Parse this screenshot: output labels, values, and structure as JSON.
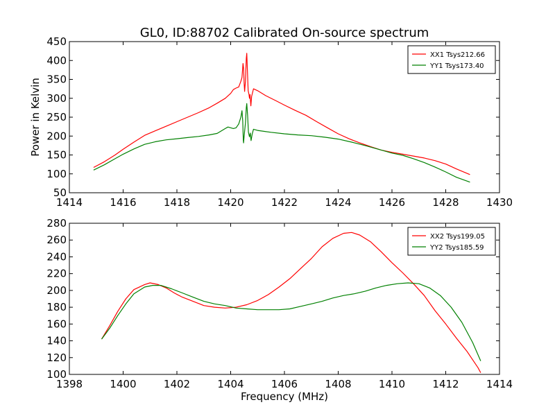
{
  "figure": {
    "title": "GL0, ID:88702 Calibrated On-source spectrum"
  },
  "chart_data": [
    {
      "type": "line",
      "title": "GL0, ID:88702 Calibrated On-source spectrum",
      "xlabel": "",
      "ylabel": "Power in Kelvin",
      "xlim": [
        1414,
        1430
      ],
      "ylim": [
        50,
        450
      ],
      "xticks": [
        1414,
        1416,
        1418,
        1420,
        1422,
        1424,
        1426,
        1428,
        1430
      ],
      "yticks": [
        50,
        100,
        150,
        200,
        250,
        300,
        350,
        400,
        450
      ],
      "grid": false,
      "legend_position": "top-right",
      "series": [
        {
          "name": "XX1 Tsys212.66",
          "color": "#ff0000",
          "points": [
            [
              1414.9,
              117
            ],
            [
              1415.3,
              132
            ],
            [
              1415.7,
              150
            ],
            [
              1416.0,
              165
            ],
            [
              1416.4,
              184
            ],
            [
              1416.8,
              202
            ],
            [
              1417.2,
              214
            ],
            [
              1417.6,
              226
            ],
            [
              1418.0,
              238
            ],
            [
              1418.4,
              250
            ],
            [
              1418.8,
              262
            ],
            [
              1419.2,
              275
            ],
            [
              1419.5,
              287
            ],
            [
              1419.8,
              300
            ],
            [
              1420.0,
              313
            ],
            [
              1420.1,
              323
            ],
            [
              1420.2,
              327
            ],
            [
              1420.3,
              330
            ],
            [
              1420.38,
              345
            ],
            [
              1420.42,
              355
            ],
            [
              1420.46,
              392
            ],
            [
              1420.48,
              380
            ],
            [
              1420.5,
              340
            ],
            [
              1420.52,
              318
            ],
            [
              1420.55,
              345
            ],
            [
              1420.58,
              405
            ],
            [
              1420.6,
              419
            ],
            [
              1420.62,
              380
            ],
            [
              1420.65,
              320
            ],
            [
              1420.68,
              310
            ],
            [
              1420.7,
              300
            ],
            [
              1420.72,
              310
            ],
            [
              1420.75,
              280
            ],
            [
              1420.78,
              305
            ],
            [
              1420.85,
              325
            ],
            [
              1421.0,
              320
            ],
            [
              1421.3,
              307
            ],
            [
              1421.7,
              293
            ],
            [
              1422.0,
              282
            ],
            [
              1422.4,
              268
            ],
            [
              1422.8,
              255
            ],
            [
              1423.2,
              238
            ],
            [
              1423.6,
              222
            ],
            [
              1424.0,
              206
            ],
            [
              1424.4,
              193
            ],
            [
              1424.8,
              182
            ],
            [
              1425.2,
              172
            ],
            [
              1425.6,
              163
            ],
            [
              1426.0,
              157
            ],
            [
              1426.4,
              152
            ],
            [
              1426.8,
              147
            ],
            [
              1427.2,
              142
            ],
            [
              1427.6,
              135
            ],
            [
              1428.0,
              126
            ],
            [
              1428.4,
              113
            ],
            [
              1428.9,
              98
            ]
          ]
        },
        {
          "name": "YY1 Tsys173.40",
          "color": "#008000",
          "points": [
            [
              1414.9,
              110
            ],
            [
              1415.3,
              124
            ],
            [
              1415.7,
              140
            ],
            [
              1416.0,
              152
            ],
            [
              1416.4,
              166
            ],
            [
              1416.8,
              178
            ],
            [
              1417.2,
              185
            ],
            [
              1417.6,
              190
            ],
            [
              1418.0,
              193
            ],
            [
              1418.4,
              196
            ],
            [
              1418.8,
              199
            ],
            [
              1419.2,
              203
            ],
            [
              1419.5,
              207
            ],
            [
              1419.8,
              220
            ],
            [
              1419.9,
              224
            ],
            [
              1420.0,
              222
            ],
            [
              1420.1,
              220
            ],
            [
              1420.2,
              222
            ],
            [
              1420.3,
              232
            ],
            [
              1420.38,
              250
            ],
            [
              1420.42,
              267
            ],
            [
              1420.45,
              240
            ],
            [
              1420.47,
              190
            ],
            [
              1420.48,
              182
            ],
            [
              1420.5,
              200
            ],
            [
              1420.55,
              235
            ],
            [
              1420.58,
              275
            ],
            [
              1420.6,
              286
            ],
            [
              1420.63,
              255
            ],
            [
              1420.66,
              210
            ],
            [
              1420.7,
              198
            ],
            [
              1420.73,
              208
            ],
            [
              1420.76,
              188
            ],
            [
              1420.8,
              205
            ],
            [
              1420.85,
              218
            ],
            [
              1421.0,
              215
            ],
            [
              1421.5,
              210
            ],
            [
              1422.0,
              206
            ],
            [
              1422.5,
              203
            ],
            [
              1423.0,
              201
            ],
            [
              1423.5,
              197
            ],
            [
              1424.0,
              192
            ],
            [
              1424.5,
              184
            ],
            [
              1425.0,
              175
            ],
            [
              1425.5,
              165
            ],
            [
              1426.0,
              155
            ],
            [
              1426.4,
              149
            ],
            [
              1426.8,
              140
            ],
            [
              1427.2,
              130
            ],
            [
              1427.6,
              118
            ],
            [
              1428.0,
              105
            ],
            [
              1428.4,
              91
            ],
            [
              1428.9,
              78
            ]
          ]
        }
      ]
    },
    {
      "type": "line",
      "title": "",
      "xlabel": "Frequency (MHz)",
      "ylabel": "",
      "xlim": [
        1398,
        1414
      ],
      "ylim": [
        100,
        280
      ],
      "xticks": [
        1398,
        1400,
        1402,
        1404,
        1406,
        1408,
        1410,
        1412,
        1414
      ],
      "yticks": [
        100,
        120,
        140,
        160,
        180,
        200,
        220,
        240,
        260,
        280
      ],
      "grid": false,
      "legend_position": "top-right",
      "series": [
        {
          "name": "XX2 Tsys199.05",
          "color": "#ff0000",
          "points": [
            [
              1399.2,
              142
            ],
            [
              1399.5,
              158
            ],
            [
              1399.8,
              175
            ],
            [
              1400.1,
              190
            ],
            [
              1400.4,
              201
            ],
            [
              1400.8,
              207
            ],
            [
              1401.0,
              209
            ],
            [
              1401.3,
              207
            ],
            [
              1401.6,
              203
            ],
            [
              1401.9,
              197
            ],
            [
              1402.2,
              192
            ],
            [
              1402.6,
              187
            ],
            [
              1403.0,
              182
            ],
            [
              1403.4,
              180
            ],
            [
              1403.8,
              179
            ],
            [
              1404.2,
              180
            ],
            [
              1404.6,
              183
            ],
            [
              1405.0,
              188
            ],
            [
              1405.4,
              195
            ],
            [
              1405.8,
              204
            ],
            [
              1406.2,
              214
            ],
            [
              1406.6,
              226
            ],
            [
              1407.0,
              238
            ],
            [
              1407.4,
              252
            ],
            [
              1407.8,
              262
            ],
            [
              1408.2,
              268
            ],
            [
              1408.5,
              269
            ],
            [
              1408.8,
              266
            ],
            [
              1409.2,
              258
            ],
            [
              1409.6,
              246
            ],
            [
              1410.0,
              233
            ],
            [
              1410.4,
              221
            ],
            [
              1410.8,
              208
            ],
            [
              1411.2,
              194
            ],
            [
              1411.6,
              176
            ],
            [
              1412.0,
              160
            ],
            [
              1412.4,
              143
            ],
            [
              1412.8,
              127
            ],
            [
              1413.2,
              108
            ],
            [
              1413.3,
              102
            ]
          ]
        },
        {
          "name": "YY2 Tsys185.59",
          "color": "#008000",
          "points": [
            [
              1399.2,
              142
            ],
            [
              1399.5,
              155
            ],
            [
              1399.8,
              170
            ],
            [
              1400.1,
              184
            ],
            [
              1400.4,
              196
            ],
            [
              1400.8,
              204
            ],
            [
              1401.1,
              206
            ],
            [
              1401.4,
              206
            ],
            [
              1401.8,
              202
            ],
            [
              1402.2,
              197
            ],
            [
              1402.6,
              192
            ],
            [
              1403.0,
              187
            ],
            [
              1403.4,
              184
            ],
            [
              1403.8,
              182
            ],
            [
              1404.2,
              179
            ],
            [
              1404.6,
              178
            ],
            [
              1405.0,
              177
            ],
            [
              1405.4,
              177
            ],
            [
              1405.8,
              177
            ],
            [
              1406.2,
              178
            ],
            [
              1406.6,
              181
            ],
            [
              1407.0,
              184
            ],
            [
              1407.4,
              187
            ],
            [
              1407.8,
              191
            ],
            [
              1408.2,
              194
            ],
            [
              1408.6,
              196
            ],
            [
              1409.0,
              199
            ],
            [
              1409.4,
              203
            ],
            [
              1409.8,
              206
            ],
            [
              1410.2,
              208
            ],
            [
              1410.6,
              209
            ],
            [
              1411.0,
              208
            ],
            [
              1411.4,
              203
            ],
            [
              1411.8,
              194
            ],
            [
              1412.2,
              180
            ],
            [
              1412.6,
              162
            ],
            [
              1413.0,
              138
            ],
            [
              1413.3,
              116
            ]
          ]
        }
      ]
    }
  ]
}
